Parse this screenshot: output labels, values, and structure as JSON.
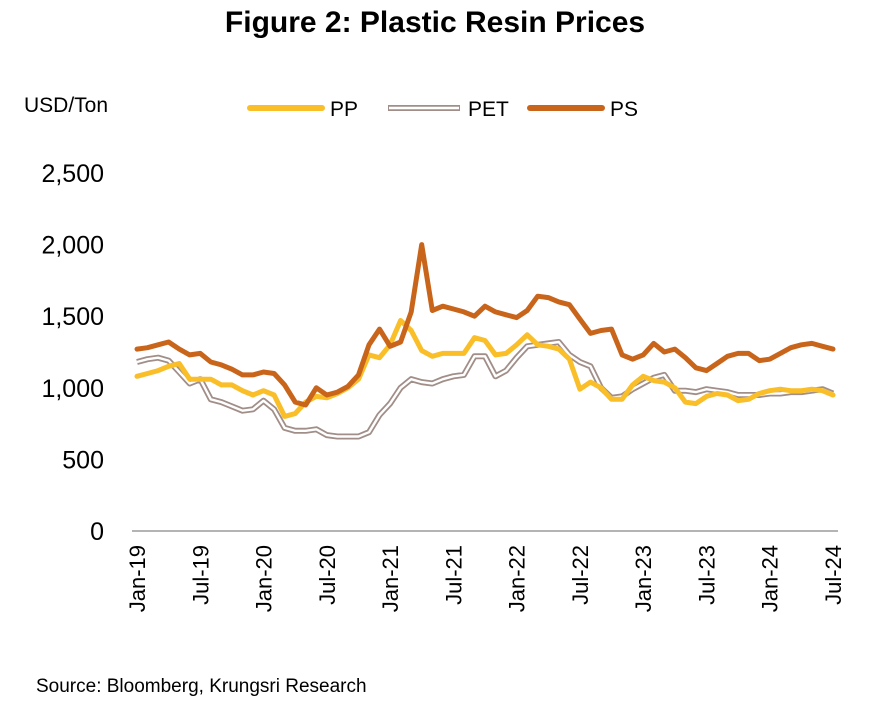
{
  "title": "Figure 2: Plastic Resin Prices",
  "unit_label": "USD/Ton",
  "source": "Source: Bloomberg, Krungsri Research",
  "chart_data": {
    "type": "line",
    "title": "Figure 2: Plastic Resin Prices",
    "ylabel": "USD/Ton",
    "ylim": [
      0,
      2500
    ],
    "yticks": [
      0,
      500,
      1000,
      1500,
      2000,
      2500
    ],
    "ytick_labels": [
      "0",
      "500",
      "1,000",
      "1,500",
      "2,000",
      "2,500"
    ],
    "xtick_labels": [
      "Jan-19",
      "Jul-19",
      "Jan-20",
      "Jul-20",
      "Jan-21",
      "Jul-21",
      "Jan-22",
      "Jul-22",
      "Jan-23",
      "Jul-23",
      "Jan-24",
      "Jul-24"
    ],
    "x_start": "Jan-19",
    "x_end": "Aug-24",
    "legend_position": "top",
    "grid": false,
    "series": [
      {
        "name": "PP",
        "color": "#F9BE28",
        "style": "thick",
        "values": [
          1080,
          1100,
          1120,
          1150,
          1170,
          1060,
          1060,
          1060,
          1020,
          1020,
          980,
          950,
          980,
          950,
          800,
          820,
          900,
          940,
          930,
          960,
          1000,
          1060,
          1230,
          1210,
          1300,
          1470,
          1400,
          1260,
          1220,
          1240,
          1240,
          1240,
          1350,
          1330,
          1230,
          1240,
          1300,
          1370,
          1300,
          1290,
          1270,
          1200,
          990,
          1040,
          1000,
          920,
          920,
          1020,
          1080,
          1050,
          1040,
          1000,
          900,
          890,
          940,
          960,
          950,
          910,
          920,
          960,
          980,
          990,
          980,
          980,
          990,
          980,
          950
        ]
      },
      {
        "name": "PET",
        "color": "#A18E88",
        "style": "double",
        "values": [
          1180,
          1200,
          1210,
          1190,
          1110,
          1030,
          1060,
          920,
          900,
          870,
          840,
          850,
          910,
          850,
          720,
          700,
          700,
          710,
          670,
          660,
          660,
          660,
          690,
          810,
          890,
          1000,
          1060,
          1040,
          1030,
          1060,
          1080,
          1090,
          1220,
          1220,
          1080,
          1120,
          1210,
          1290,
          1300,
          1310,
          1320,
          1230,
          1180,
          1150,
          1000,
          930,
          940,
          990,
          1030,
          1070,
          1090,
          980,
          980,
          970,
          990,
          980,
          970,
          950,
          950,
          950,
          960,
          960,
          970,
          970,
          980,
          990,
          960
        ]
      },
      {
        "name": "PS",
        "color": "#C9651B",
        "style": "thick",
        "values": [
          1270,
          1280,
          1300,
          1320,
          1270,
          1230,
          1240,
          1180,
          1160,
          1130,
          1090,
          1090,
          1110,
          1100,
          1020,
          900,
          880,
          1000,
          950,
          970,
          1010,
          1090,
          1300,
          1410,
          1290,
          1320,
          1530,
          2000,
          1540,
          1570,
          1550,
          1530,
          1500,
          1570,
          1530,
          1510,
          1490,
          1540,
          1640,
          1630,
          1600,
          1580,
          1480,
          1380,
          1400,
          1410,
          1230,
          1200,
          1230,
          1310,
          1250,
          1270,
          1210,
          1140,
          1120,
          1170,
          1220,
          1240,
          1240,
          1190,
          1200,
          1240,
          1280,
          1300,
          1310,
          1290,
          1270
        ]
      }
    ]
  }
}
